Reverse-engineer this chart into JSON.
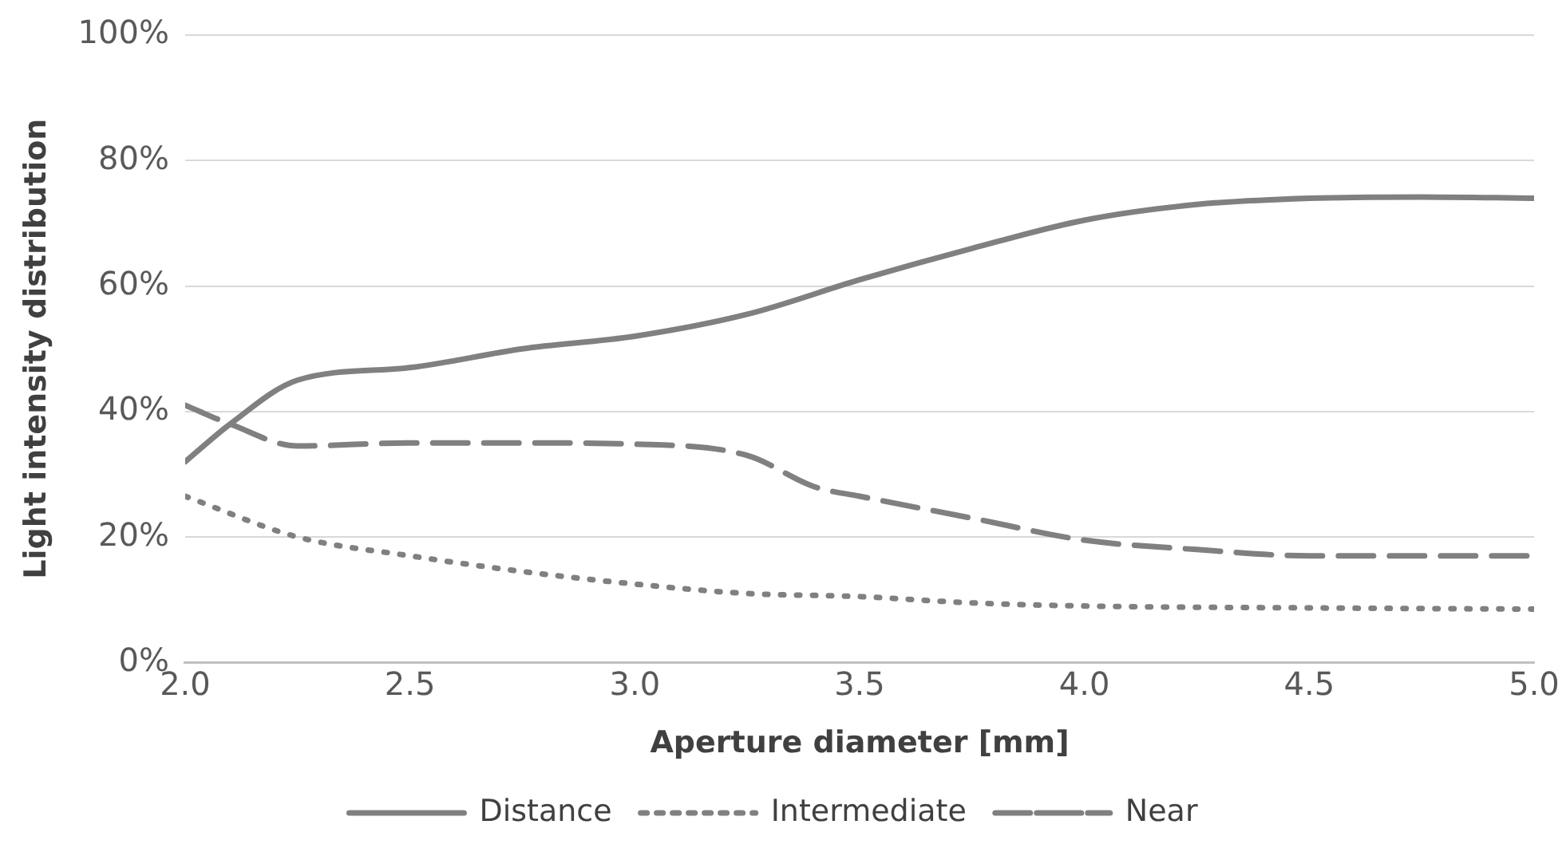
{
  "chart_data": {
    "type": "line",
    "xlabel": "Aperture diameter [mm]",
    "ylabel": "Light intensity distribution",
    "xlim": [
      2.0,
      5.0
    ],
    "xticks": [
      {
        "value": 2,
        "label": "2.0"
      },
      {
        "value": 2.5,
        "label": "2.5"
      },
      {
        "value": 3,
        "label": "3.0"
      },
      {
        "value": 3.5,
        "label": "3.5"
      },
      {
        "value": 4,
        "label": "4.0"
      },
      {
        "value": 4.5,
        "label": "4.5"
      },
      {
        "value": 5,
        "label": "5.0"
      }
    ],
    "ylim": [
      0,
      100
    ],
    "yticks": [
      {
        "value": 0,
        "label": "0%"
      },
      {
        "value": 20,
        "label": "20%"
      },
      {
        "value": 40,
        "label": "40%"
      },
      {
        "value": 60,
        "label": "60%"
      },
      {
        "value": 80,
        "label": "80%"
      },
      {
        "value": 100,
        "label": "100%"
      }
    ],
    "grid": "y",
    "legend": "bottom",
    "marker": "none",
    "series": [
      {
        "name": "Distance",
        "color": "#808080",
        "line_style": "solid",
        "x": [
          2.0,
          2.1,
          2.25,
          2.5,
          2.75,
          3.0,
          3.25,
          3.5,
          3.75,
          4.0,
          4.25,
          4.5,
          4.75,
          5.0
        ],
        "values": [
          32,
          38,
          45,
          47,
          50,
          52,
          55.5,
          61,
          66,
          70.5,
          73,
          74,
          74.2,
          74
        ]
      },
      {
        "name": "Intermediate",
        "color": "#808080",
        "line_style": "dotted",
        "x": [
          2.0,
          2.25,
          2.5,
          2.75,
          3.0,
          3.25,
          3.5,
          3.75,
          4.0,
          4.5,
          5.0
        ],
        "values": [
          26.5,
          20,
          17,
          14.5,
          12.5,
          11,
          10.5,
          9.5,
          9,
          8.7,
          8.5
        ]
      },
      {
        "name": "Near",
        "color": "#808080",
        "line_style": "dashed",
        "x": [
          2.0,
          2.1,
          2.25,
          2.5,
          2.75,
          3.0,
          3.25,
          3.4,
          3.5,
          3.75,
          4.0,
          4.25,
          4.5,
          4.75,
          5.0
        ],
        "values": [
          41,
          38,
          34.5,
          35,
          35,
          34.8,
          33,
          28,
          26.5,
          23,
          19.5,
          18,
          17,
          17,
          17
        ]
      }
    ]
  }
}
